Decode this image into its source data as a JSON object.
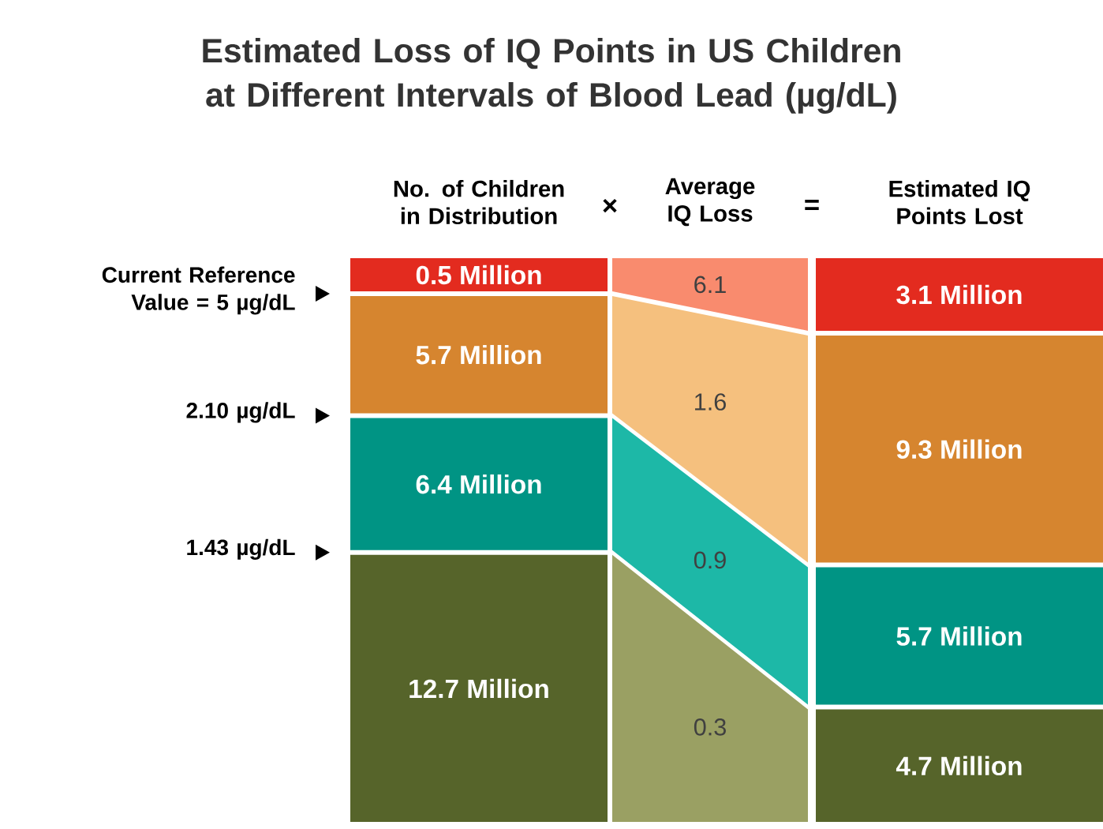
{
  "chart_data": {
    "type": "other",
    "title": "Estimated Loss of IQ Points in US Children at Different Intervals of Blood Lead (µg/dL)",
    "categories": [
      "No. of Children in Distribution",
      "Average IQ Loss",
      "Estimated IQ Points Lost"
    ],
    "series": [
      {
        "colors": [
          "#e32b1f",
          "#f98b6e",
          "#e32b1f"
        ],
        "values": [
          0.5,
          6.1,
          3.1
        ],
        "value_labels": [
          "0.5 Million",
          "6.1",
          "3.1 Million"
        ]
      },
      {
        "colors": [
          "#d6852f",
          "#f5c07e",
          "#d6852f"
        ],
        "values": [
          5.7,
          1.6,
          9.3
        ],
        "value_labels": [
          "5.7 Million",
          "1.6",
          "9.3 Million"
        ]
      },
      {
        "colors": [
          "#009484",
          "#1db8a7",
          "#009484"
        ],
        "values": [
          6.4,
          0.9,
          5.7
        ],
        "value_labels": [
          "6.4 Million",
          "0.9",
          "5.7 Million"
        ]
      },
      {
        "colors": [
          "#56642a",
          "#9aa063",
          "#56642a"
        ],
        "values": [
          12.7,
          0.3,
          4.7
        ],
        "value_labels": [
          "12.7 Million",
          "0.3",
          "4.7 Million"
        ]
      }
    ],
    "annotations": [
      "×",
      "=",
      "Current Reference Value = 5 µg/dL",
      "2.10 µg/dL",
      "1.43 µg/dL"
    ]
  }
}
